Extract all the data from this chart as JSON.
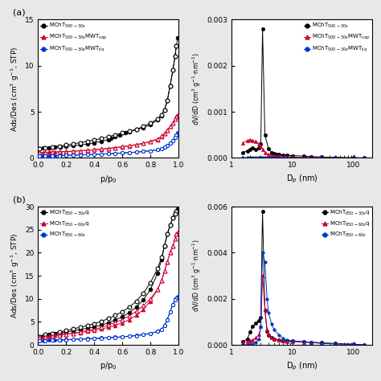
{
  "panel_a_left": {
    "title_label": "(a)",
    "xlabel": "p/p$_0$",
    "ylabel": "Ads/Des (cm$^3$ g$^{-1}$, STP)",
    "ylim": [
      0,
      15
    ],
    "yticks": [
      0,
      5,
      10,
      15
    ],
    "series": [
      {
        "label": "MChT$_{500\\text{-}30s}$",
        "color": "black",
        "marker": "o",
        "markersize": 3.5,
        "ads_x": [
          0.01,
          0.04,
          0.08,
          0.12,
          0.16,
          0.2,
          0.25,
          0.3,
          0.35,
          0.4,
          0.45,
          0.5,
          0.52,
          0.55,
          0.58,
          0.62,
          0.65,
          0.7,
          0.75,
          0.8,
          0.85,
          0.88,
          0.9,
          0.92,
          0.94,
          0.96,
          0.975,
          0.985,
          0.995
        ],
        "ads_y": [
          1.0,
          1.05,
          1.1,
          1.15,
          1.2,
          1.25,
          1.32,
          1.4,
          1.5,
          1.65,
          1.8,
          2.0,
          2.1,
          2.3,
          2.5,
          2.7,
          2.85,
          3.05,
          3.3,
          3.6,
          4.1,
          4.6,
          5.2,
          6.2,
          7.8,
          9.5,
          11.0,
          12.2,
          13.0
        ],
        "des_x": [
          0.985,
          0.975,
          0.96,
          0.94,
          0.92,
          0.9,
          0.88,
          0.85,
          0.8,
          0.75,
          0.7,
          0.65,
          0.6,
          0.55,
          0.5,
          0.45,
          0.4,
          0.35,
          0.3,
          0.25,
          0.2,
          0.15,
          0.1,
          0.05,
          0.01
        ],
        "des_y": [
          12.2,
          11.0,
          9.5,
          7.8,
          6.2,
          5.2,
          4.7,
          4.2,
          3.8,
          3.4,
          3.1,
          2.9,
          2.7,
          2.5,
          2.3,
          2.1,
          1.95,
          1.8,
          1.65,
          1.52,
          1.4,
          1.3,
          1.2,
          1.1,
          1.0
        ]
      },
      {
        "label": "MChT$_{500\\text{-}30s}$MWT$_{vap}$",
        "color": "#cc0033",
        "marker": "^",
        "markersize": 3.5,
        "ads_x": [
          0.01,
          0.04,
          0.08,
          0.12,
          0.16,
          0.2,
          0.25,
          0.3,
          0.35,
          0.4,
          0.45,
          0.5,
          0.55,
          0.6,
          0.65,
          0.7,
          0.75,
          0.8,
          0.85,
          0.88,
          0.9,
          0.92,
          0.94,
          0.96,
          0.975,
          0.985,
          0.995
        ],
        "ads_y": [
          0.55,
          0.6,
          0.63,
          0.65,
          0.67,
          0.7,
          0.73,
          0.77,
          0.82,
          0.88,
          0.95,
          1.02,
          1.1,
          1.2,
          1.3,
          1.42,
          1.58,
          1.75,
          2.0,
          2.3,
          2.65,
          3.0,
          3.4,
          3.8,
          4.2,
          4.5,
          4.7
        ],
        "des_x": [
          0.985,
          0.975,
          0.96,
          0.94,
          0.92,
          0.9,
          0.88,
          0.85,
          0.8,
          0.75,
          0.7,
          0.65,
          0.6,
          0.55,
          0.5,
          0.45,
          0.4,
          0.35,
          0.3,
          0.25,
          0.2,
          0.15,
          0.1,
          0.05,
          0.01
        ],
        "des_y": [
          4.5,
          4.2,
          3.8,
          3.4,
          3.0,
          2.65,
          2.35,
          2.05,
          1.8,
          1.6,
          1.45,
          1.32,
          1.22,
          1.12,
          1.03,
          0.96,
          0.88,
          0.82,
          0.77,
          0.72,
          0.68,
          0.65,
          0.63,
          0.6,
          0.55
        ]
      },
      {
        "label": "MChT$_{500\\text{-}30s}$MWT$_{liq}$",
        "color": "#0033cc",
        "marker": "o",
        "markersize": 3.0,
        "ads_x": [
          0.01,
          0.04,
          0.08,
          0.12,
          0.16,
          0.2,
          0.25,
          0.3,
          0.35,
          0.4,
          0.45,
          0.5,
          0.55,
          0.6,
          0.65,
          0.7,
          0.75,
          0.8,
          0.85,
          0.88,
          0.9,
          0.92,
          0.94,
          0.96,
          0.975,
          0.985,
          0.995
        ],
        "ads_y": [
          0.18,
          0.2,
          0.22,
          0.24,
          0.26,
          0.28,
          0.31,
          0.33,
          0.36,
          0.39,
          0.42,
          0.46,
          0.5,
          0.54,
          0.58,
          0.63,
          0.7,
          0.77,
          0.87,
          1.0,
          1.15,
          1.35,
          1.6,
          1.9,
          2.2,
          2.5,
          2.7
        ],
        "des_x": [
          0.985,
          0.975,
          0.96,
          0.94,
          0.92,
          0.9,
          0.88,
          0.85,
          0.8,
          0.75,
          0.7,
          0.65,
          0.6,
          0.55,
          0.5,
          0.45,
          0.4,
          0.35,
          0.3,
          0.25,
          0.2,
          0.15,
          0.1,
          0.05,
          0.01
        ],
        "des_y": [
          2.5,
          2.2,
          1.9,
          1.6,
          1.35,
          1.15,
          1.0,
          0.87,
          0.77,
          0.7,
          0.63,
          0.57,
          0.52,
          0.48,
          0.44,
          0.41,
          0.38,
          0.35,
          0.32,
          0.3,
          0.27,
          0.25,
          0.23,
          0.21,
          0.18
        ]
      }
    ]
  },
  "panel_a_right": {
    "xlabel": "D$_p$ (nm)",
    "ylabel": "dV/dD (cm$^3$ g$^{-1}$·nm$^{-1}$)",
    "ylim": [
      0,
      0.003
    ],
    "yticks": [
      0,
      0.001,
      0.002,
      0.003
    ],
    "series": [
      {
        "label": "MChT$_{500\\text{-}30s}$",
        "color": "black",
        "marker": "o",
        "markersize": 3,
        "x": [
          1.5,
          1.8,
          2.0,
          2.2,
          2.5,
          2.8,
          3.0,
          3.2,
          3.5,
          4.0,
          4.5,
          5.0,
          5.5,
          6.0,
          7.0,
          8.0,
          10.0,
          15.0,
          20.0,
          30.0,
          50.0,
          100.0,
          150.0
        ],
        "y": [
          0.00012,
          0.00015,
          0.00018,
          0.00022,
          0.00018,
          0.00022,
          0.0003,
          0.0028,
          0.0005,
          0.0002,
          0.00012,
          9e-05,
          8e-05,
          7e-05,
          6e-05,
          6e-05,
          5e-05,
          4e-05,
          3e-05,
          2e-05,
          1e-05,
          5e-06,
          0.0
        ]
      },
      {
        "label": "MChT$_{500\\text{-}30s}$MWT$_{vap}$",
        "color": "#cc0033",
        "marker": "^",
        "markersize": 3,
        "x": [
          1.5,
          1.8,
          2.0,
          2.2,
          2.5,
          2.8,
          3.0,
          3.2,
          3.5,
          4.0,
          4.5,
          5.0,
          5.5,
          6.0,
          7.0,
          8.0,
          10.0,
          15.0,
          20.0,
          30.0,
          50.0,
          100.0,
          150.0
        ],
        "y": [
          0.00032,
          0.00038,
          0.0004,
          0.00038,
          0.00036,
          0.0003,
          0.00025,
          0.00018,
          0.00012,
          8e-05,
          6e-05,
          5e-05,
          4e-05,
          4e-05,
          3e-05,
          3e-05,
          2e-05,
          1e-05,
          1e-05,
          1e-05,
          5e-06,
          0.0,
          0.0
        ]
      },
      {
        "label": "MChT$_{500\\text{-}30s}$MWT$_{liq}$",
        "color": "#0033cc",
        "marker": "o",
        "markersize": 2.5,
        "x": [
          1.5,
          1.8,
          2.0,
          2.2,
          2.5,
          2.8,
          3.0,
          3.2,
          3.5,
          4.0,
          4.5,
          5.0,
          5.5,
          6.0,
          7.0,
          8.0,
          10.0,
          15.0,
          20.0,
          30.0,
          50.0,
          100.0,
          150.0
        ],
        "y": [
          0.0,
          0.0,
          0.0,
          0.0,
          0.0,
          0.0,
          0.0,
          0.0,
          0.0,
          0.0,
          0.0,
          0.0,
          0.0,
          0.0,
          0.0,
          0.0,
          0.0,
          0.0,
          0.0,
          0.0,
          0.0,
          0.0,
          0.0
        ]
      }
    ]
  },
  "panel_b_left": {
    "title_label": "(b)",
    "xlabel": "p/p$_0$",
    "ylabel": "Ads/Des (cm$^3$ g$^{-1}$, STP)",
    "ylim": [
      0,
      30
    ],
    "yticks": [
      0,
      5,
      10,
      15,
      20,
      25,
      30
    ],
    "series": [
      {
        "label": "MChT$_{850\\text{-}30s}$q",
        "color": "black",
        "marker": "o",
        "markersize": 3.5,
        "ads_x": [
          0.01,
          0.04,
          0.08,
          0.12,
          0.16,
          0.2,
          0.25,
          0.3,
          0.35,
          0.4,
          0.45,
          0.5,
          0.55,
          0.6,
          0.65,
          0.7,
          0.75,
          0.8,
          0.85,
          0.88,
          0.9,
          0.92,
          0.94,
          0.96,
          0.975,
          0.985,
          0.995
        ],
        "ads_y": [
          1.8,
          2.0,
          2.2,
          2.4,
          2.6,
          2.8,
          3.05,
          3.3,
          3.6,
          3.9,
          4.3,
          4.8,
          5.4,
          6.1,
          7.0,
          8.2,
          9.8,
          12.0,
          15.5,
          18.5,
          21.5,
          24.0,
          26.0,
          27.5,
          28.5,
          29.0,
          29.5
        ],
        "des_x": [
          0.985,
          0.975,
          0.96,
          0.94,
          0.92,
          0.9,
          0.88,
          0.85,
          0.8,
          0.75,
          0.7,
          0.65,
          0.6,
          0.55,
          0.5,
          0.45,
          0.4,
          0.35,
          0.3,
          0.25,
          0.2,
          0.15,
          0.1,
          0.05,
          0.01
        ],
        "des_y": [
          29.0,
          28.5,
          27.5,
          26.0,
          24.0,
          21.5,
          19.0,
          16.5,
          13.5,
          11.2,
          9.5,
          8.2,
          7.2,
          6.4,
          5.7,
          5.1,
          4.6,
          4.2,
          3.8,
          3.5,
          3.1,
          2.8,
          2.5,
          2.2,
          1.8
        ]
      },
      {
        "label": "MChT$_{850\\text{-}60s}$q",
        "color": "#cc0033",
        "marker": "^",
        "markersize": 3.5,
        "ads_x": [
          0.01,
          0.04,
          0.08,
          0.12,
          0.16,
          0.2,
          0.25,
          0.3,
          0.35,
          0.4,
          0.45,
          0.5,
          0.55,
          0.6,
          0.65,
          0.7,
          0.75,
          0.8,
          0.85,
          0.88,
          0.9,
          0.92,
          0.94,
          0.96,
          0.975,
          0.985,
          0.995
        ],
        "ads_y": [
          1.5,
          1.7,
          1.9,
          2.05,
          2.2,
          2.35,
          2.5,
          2.7,
          2.9,
          3.15,
          3.45,
          3.8,
          4.25,
          4.8,
          5.5,
          6.4,
          7.7,
          9.5,
          12.0,
          14.0,
          16.0,
          18.0,
          20.0,
          21.5,
          23.0,
          24.0,
          24.5
        ],
        "des_x": [
          0.985,
          0.975,
          0.96,
          0.94,
          0.92,
          0.9,
          0.88,
          0.85,
          0.8,
          0.75,
          0.7,
          0.65,
          0.6,
          0.55,
          0.5,
          0.45,
          0.4,
          0.35,
          0.3,
          0.25,
          0.2,
          0.15,
          0.1,
          0.05,
          0.01
        ],
        "des_y": [
          24.0,
          23.0,
          21.5,
          20.0,
          18.0,
          16.0,
          14.0,
          12.0,
          10.0,
          8.5,
          7.3,
          6.3,
          5.5,
          4.9,
          4.3,
          3.8,
          3.4,
          3.1,
          2.8,
          2.5,
          2.3,
          2.1,
          1.9,
          1.7,
          1.5
        ]
      },
      {
        "label": "MChT$_{850\\text{-}60s}$",
        "color": "#0033cc",
        "marker": "o",
        "markersize": 3.0,
        "ads_x": [
          0.01,
          0.04,
          0.08,
          0.12,
          0.16,
          0.2,
          0.25,
          0.3,
          0.35,
          0.4,
          0.45,
          0.5,
          0.55,
          0.6,
          0.65,
          0.7,
          0.75,
          0.8,
          0.85,
          0.88,
          0.9,
          0.92,
          0.94,
          0.96,
          0.975,
          0.985,
          0.995
        ],
        "ads_y": [
          0.8,
          0.9,
          1.0,
          1.05,
          1.1,
          1.15,
          1.2,
          1.28,
          1.35,
          1.42,
          1.5,
          1.58,
          1.67,
          1.78,
          1.9,
          2.05,
          2.25,
          2.5,
          2.9,
          3.4,
          4.2,
          5.5,
          7.2,
          8.8,
          9.8,
          10.2,
          10.5
        ],
        "des_x": [
          0.985,
          0.975,
          0.96,
          0.94,
          0.92,
          0.9,
          0.88,
          0.85,
          0.8,
          0.75,
          0.7,
          0.65,
          0.6,
          0.55,
          0.5,
          0.45,
          0.4,
          0.35,
          0.3,
          0.25,
          0.2,
          0.15,
          0.1,
          0.05,
          0.01
        ],
        "des_y": [
          10.2,
          9.8,
          8.8,
          7.2,
          5.5,
          4.2,
          3.4,
          2.9,
          2.5,
          2.2,
          2.0,
          1.85,
          1.73,
          1.62,
          1.52,
          1.42,
          1.35,
          1.28,
          1.22,
          1.16,
          1.1,
          1.05,
          1.0,
          0.9,
          0.8
        ]
      }
    ]
  },
  "panel_b_right": {
    "xlabel": "D$_p$ (nm)",
    "ylabel": "dV/dD (cm$^3$ g$^{-1}$·nm$^{-1}$)",
    "ylim": [
      0,
      0.006
    ],
    "yticks": [
      0,
      0.002,
      0.004,
      0.006
    ],
    "series": [
      {
        "label": "MChT$_{850\\text{-}30s}$q",
        "color": "black",
        "marker": "o",
        "markersize": 3,
        "x": [
          1.5,
          1.8,
          2.0,
          2.2,
          2.5,
          2.8,
          3.0,
          3.2,
          3.5,
          3.8,
          4.0,
          4.5,
          5.0,
          6.0,
          7.0,
          8.0,
          10.0,
          15.0,
          20.0,
          30.0,
          50.0,
          100.0,
          150.0
        ],
        "y": [
          0.00015,
          0.00025,
          0.00055,
          0.0008,
          0.00095,
          0.00105,
          0.0012,
          0.0058,
          0.0015,
          0.0006,
          0.00042,
          0.0003,
          0.00024,
          0.0002,
          0.00018,
          0.00018,
          0.00016,
          0.00014,
          0.00012,
          9e-05,
          6e-05,
          3e-05,
          0.0
        ]
      },
      {
        "label": "MChT$_{850\\text{-}60s}$q",
        "color": "#cc0033",
        "marker": "^",
        "markersize": 3,
        "x": [
          1.5,
          1.8,
          2.0,
          2.2,
          2.5,
          2.8,
          3.0,
          3.2,
          3.5,
          3.8,
          4.0,
          4.5,
          5.0,
          6.0,
          7.0,
          8.0,
          10.0,
          15.0,
          20.0,
          30.0,
          50.0,
          100.0,
          150.0
        ],
        "y": [
          0.0001,
          0.00015,
          0.00018,
          0.00022,
          0.0003,
          0.00045,
          0.0008,
          0.003,
          0.00155,
          0.00065,
          0.00045,
          0.00032,
          0.00025,
          0.0002,
          0.00018,
          0.00015,
          0.00013,
          0.00012,
          0.0001,
          7e-05,
          5e-05,
          2e-05,
          0.0
        ]
      },
      {
        "label": "MChT$_{850\\text{-}60s}$",
        "color": "#0033cc",
        "marker": "o",
        "markersize": 2.5,
        "x": [
          1.5,
          1.8,
          2.0,
          2.2,
          2.5,
          2.8,
          3.0,
          3.2,
          3.5,
          3.8,
          4.0,
          4.5,
          5.0,
          6.0,
          7.0,
          8.0,
          10.0,
          15.0,
          20.0,
          30.0,
          50.0,
          100.0,
          150.0
        ],
        "y": [
          0.0,
          0.0,
          0.0,
          5e-05,
          0.00012,
          0.00025,
          0.0008,
          0.004,
          0.0036,
          0.002,
          0.0014,
          0.0009,
          0.00065,
          0.00042,
          0.00028,
          0.00022,
          0.00018,
          0.00013,
          0.0001,
          7e-05,
          4e-05,
          2e-05,
          0.0
        ]
      }
    ]
  }
}
